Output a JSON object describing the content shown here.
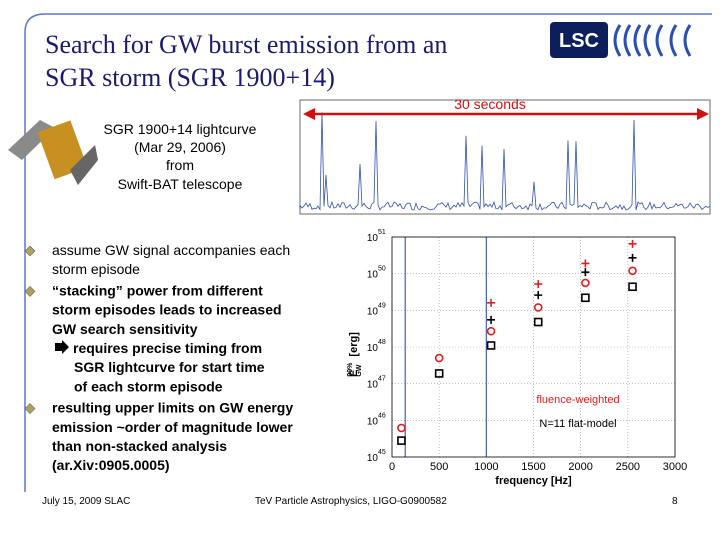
{
  "header": {
    "title_lines": [
      "Search for GW burst emission from an",
      "SGR storm (SGR 1900+14)"
    ],
    "logo": "LSC"
  },
  "lightcurve": {
    "span_label": "30 seconds",
    "caption_lines": [
      "SGR 1900+14 lightcurve",
      "(Mar 29, 2006)",
      "from",
      "Swift-BAT telescope"
    ]
  },
  "bullets": [
    {
      "lines": [
        "assume GW signal accompanies each",
        "storm episode"
      ]
    },
    {
      "lines": [
        "“stacking” power from different",
        "storm episodes leads to increased",
        "GW search sensitivity"
      ],
      "sub_lines": [
        "requires precise timing from",
        "SGR lightcurve for start time",
        "of each storm episode"
      ]
    },
    {
      "lines": [
        "resulting upper limits on GW energy",
        "emission ~order of magnitude lower",
        "than non-stacked analysis",
        "(ar.Xiv:0905.0005)"
      ]
    }
  ],
  "chart_data": {
    "type": "scatter",
    "xlabel": "frequency [Hz]",
    "ylabel": "E",
    "ylabel_sub": "GW",
    "ylabel_sup": "90%",
    "ylabel_unit": "[erg]",
    "x": [
      100,
      500,
      1050,
      1550,
      2050,
      2550
    ],
    "series": [
      {
        "color": "#e02020",
        "marker": "plus",
        "values": [
          null,
          null,
          1.6e+49,
          5.2e+49,
          1.9e+50,
          6.5e+50
        ]
      },
      {
        "color": "#000000",
        "marker": "plus",
        "values": [
          null,
          null,
          5.5e+48,
          2.6e+49,
          1.1e+50,
          2.7e+50
        ]
      },
      {
        "color": "#e02020",
        "marker": "circle",
        "values": [
          6.2e+45,
          5e+47,
          2.7e+48,
          1.2e+49,
          5.6e+49,
          1.2e+50
        ]
      },
      {
        "color": "#000000",
        "marker": "square",
        "values": [
          2.8e+45,
          1.9e+47,
          1.1e+48,
          4.8e+48,
          2.2e+49,
          4.4e+49
        ]
      }
    ],
    "xlim": [
      0,
      3000
    ],
    "xticks": [
      0,
      500,
      1000,
      1500,
      2000,
      2500,
      3000
    ],
    "ylim": [
      1e+45,
      1e+51
    ],
    "log_y": true,
    "yticks": [
      {
        "value": 1e+45,
        "label": "10",
        "exponent": "45"
      },
      {
        "value": 1e+46,
        "label": "10",
        "exponent": "46"
      },
      {
        "value": 1e+47,
        "label": "10",
        "exponent": "47"
      },
      {
        "value": 1e+48,
        "label": "10",
        "exponent": "48"
      },
      {
        "value": 1e+49,
        "label": "10",
        "exponent": "49"
      },
      {
        "value": 1e+50,
        "label": "10",
        "exponent": "50"
      },
      {
        "value": 1e+51,
        "label": "10",
        "exponent": "51"
      }
    ],
    "vlines": [
      140,
      1000
    ],
    "grid": true,
    "annotations": [
      {
        "text": "fluence-weighted",
        "color": "#e02020"
      },
      {
        "text": "N=11 flat-model",
        "color": "#000000"
      }
    ]
  },
  "footer": {
    "left": "July 15, 2009  SLAC",
    "center": "TeV Particle Astrophysics,  LIGO-G0900582",
    "page": "8"
  }
}
